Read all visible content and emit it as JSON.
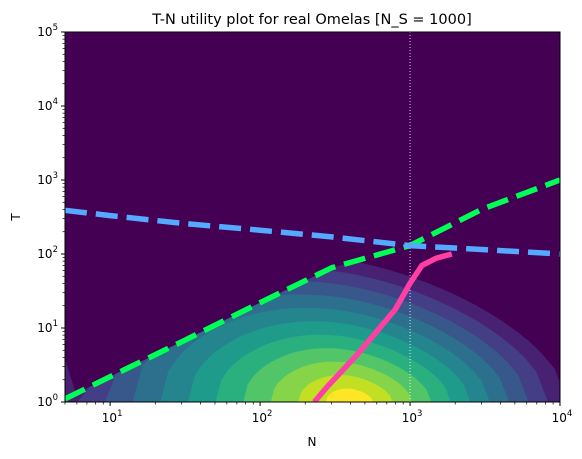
{
  "chart_data": {
    "type": "contour",
    "title": "T-N utility plot for real Omelas [N_S = 1000]",
    "xlabel": "N",
    "ylabel": "T",
    "xscale": "log",
    "yscale": "log",
    "xlim": [
      5,
      10000
    ],
    "ylim": [
      1,
      100000
    ],
    "x_ticks": [
      {
        "base": "10",
        "exp": "1"
      },
      {
        "base": "10",
        "exp": "2"
      },
      {
        "base": "10",
        "exp": "3"
      },
      {
        "base": "10",
        "exp": "4"
      }
    ],
    "y_ticks": [
      {
        "base": "10",
        "exp": "0"
      },
      {
        "base": "10",
        "exp": "1"
      },
      {
        "base": "10",
        "exp": "2"
      },
      {
        "base": "10",
        "exp": "3"
      },
      {
        "base": "10",
        "exp": "4"
      },
      {
        "base": "10",
        "exp": "5"
      }
    ],
    "background_color": "#440154",
    "contour_colors": [
      "#482173",
      "#433e85",
      "#38588c",
      "#2d708e",
      "#25858e",
      "#1e9b8a",
      "#2ab07f",
      "#52c569",
      "#86d549",
      "#c2df23",
      "#fde725"
    ],
    "contour_peak": {
      "N": 420,
      "T": 1
    },
    "vertical_line": {
      "x": 1000,
      "color": "#ffffff",
      "style": "dotted"
    },
    "series": [
      {
        "color": "#00ff55",
        "style": "dashed",
        "points": [
          [
            5,
            1.1
          ],
          [
            10,
            2.2
          ],
          [
            30,
            6.5
          ],
          [
            100,
            22
          ],
          [
            300,
            65
          ],
          [
            1000,
            130
          ],
          [
            3000,
            400
          ],
          [
            10000,
            1000
          ]
        ]
      },
      {
        "color": "#55aaff",
        "style": "dashed",
        "points": [
          [
            5,
            390
          ],
          [
            10,
            330
          ],
          [
            30,
            260
          ],
          [
            100,
            210
          ],
          [
            300,
            170
          ],
          [
            1000,
            130
          ],
          [
            3000,
            115
          ],
          [
            10000,
            100
          ]
        ]
      },
      {
        "color": "#ff3fa4",
        "style": "solid",
        "points": [
          [
            230,
            1
          ],
          [
            280,
            1.6
          ],
          [
            350,
            2.6
          ],
          [
            450,
            4.5
          ],
          [
            600,
            9
          ],
          [
            800,
            18
          ],
          [
            1000,
            40
          ],
          [
            1200,
            70
          ],
          [
            1500,
            88
          ],
          [
            1900,
            100
          ]
        ]
      }
    ]
  }
}
